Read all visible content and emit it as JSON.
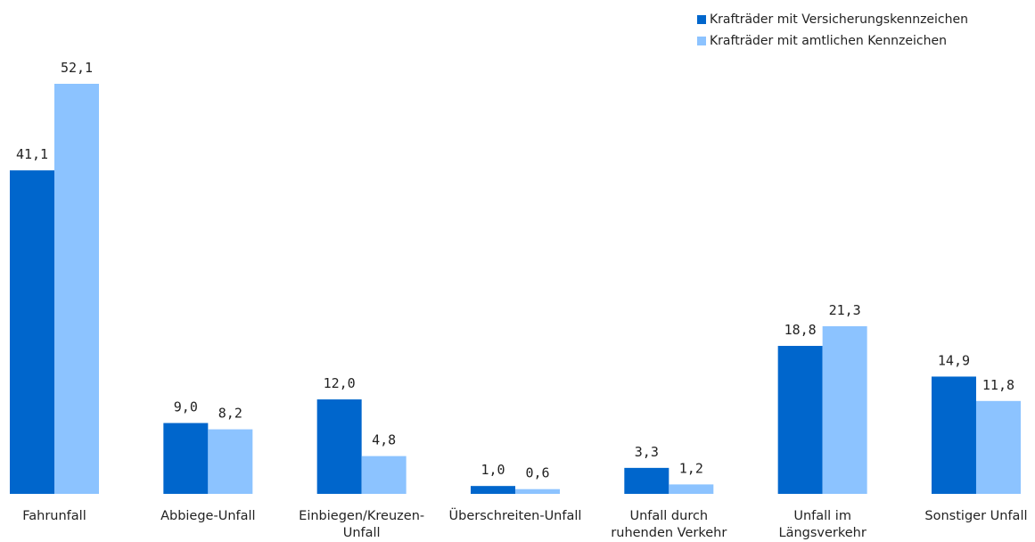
{
  "chart_data": {
    "type": "bar",
    "title": "",
    "xlabel": "",
    "ylabel": "",
    "ylim": [
      0,
      52.1
    ],
    "grid": false,
    "legend_position": "top-right",
    "categories": [
      [
        "Fahrunfall"
      ],
      [
        "Abbiege-Unfall"
      ],
      [
        "Einbiegen/Kreuzen-",
        "Unfall"
      ],
      [
        "Überschreiten-Unfall"
      ],
      [
        "Unfall durch",
        "ruhenden Verkehr"
      ],
      [
        "Unfall im",
        "Längsverkehr"
      ],
      [
        "Sonstiger Unfall"
      ]
    ],
    "series": [
      {
        "name": "Krafträder mit Versicherungskennzeichen",
        "color": "#0066cc",
        "values": [
          41.1,
          9.0,
          12.0,
          1.0,
          3.3,
          18.8,
          14.9
        ],
        "labels": [
          "41,1",
          "9,0",
          "12,0",
          "1,0",
          "3,3",
          "18,8",
          "14,9"
        ]
      },
      {
        "name": "Krafträder mit amtlichen Kennzeichen",
        "color": "#8cc3ff",
        "values": [
          52.1,
          8.2,
          4.8,
          0.6,
          1.2,
          21.3,
          11.8
        ],
        "labels": [
          "52,1",
          "8,2",
          "4,8",
          "0,6",
          "1,2",
          "21,3",
          "11,8"
        ]
      }
    ]
  }
}
